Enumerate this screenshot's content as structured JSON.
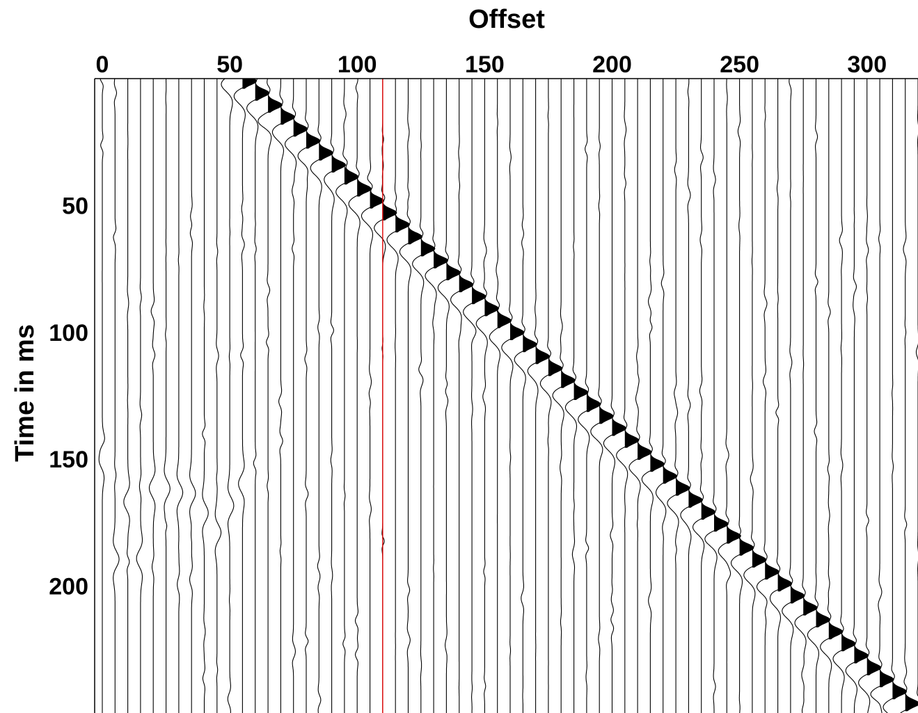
{
  "chart_data": {
    "type": "seismic-wiggle",
    "xlabel": "Offset",
    "ylabel": "Time in ms",
    "x_axis_position": "top",
    "xlim": [
      -3,
      320
    ],
    "ylim": [
      0,
      250
    ],
    "y_inverted": true,
    "x_ticks": [
      0,
      50,
      100,
      150,
      200,
      250,
      300
    ],
    "y_ticks": [
      50,
      100,
      150,
      200
    ],
    "trace_spacing": 5,
    "first_trace_offset": 0,
    "last_trace_offset": 320,
    "first_arrival": {
      "offset_start": 55,
      "time_start": 0,
      "offset_end": 320,
      "time_end": 250
    },
    "red_marker_offset": 110,
    "colors": {
      "traces": "#000000",
      "marker": "#e00000",
      "background": "#ffffff"
    }
  }
}
